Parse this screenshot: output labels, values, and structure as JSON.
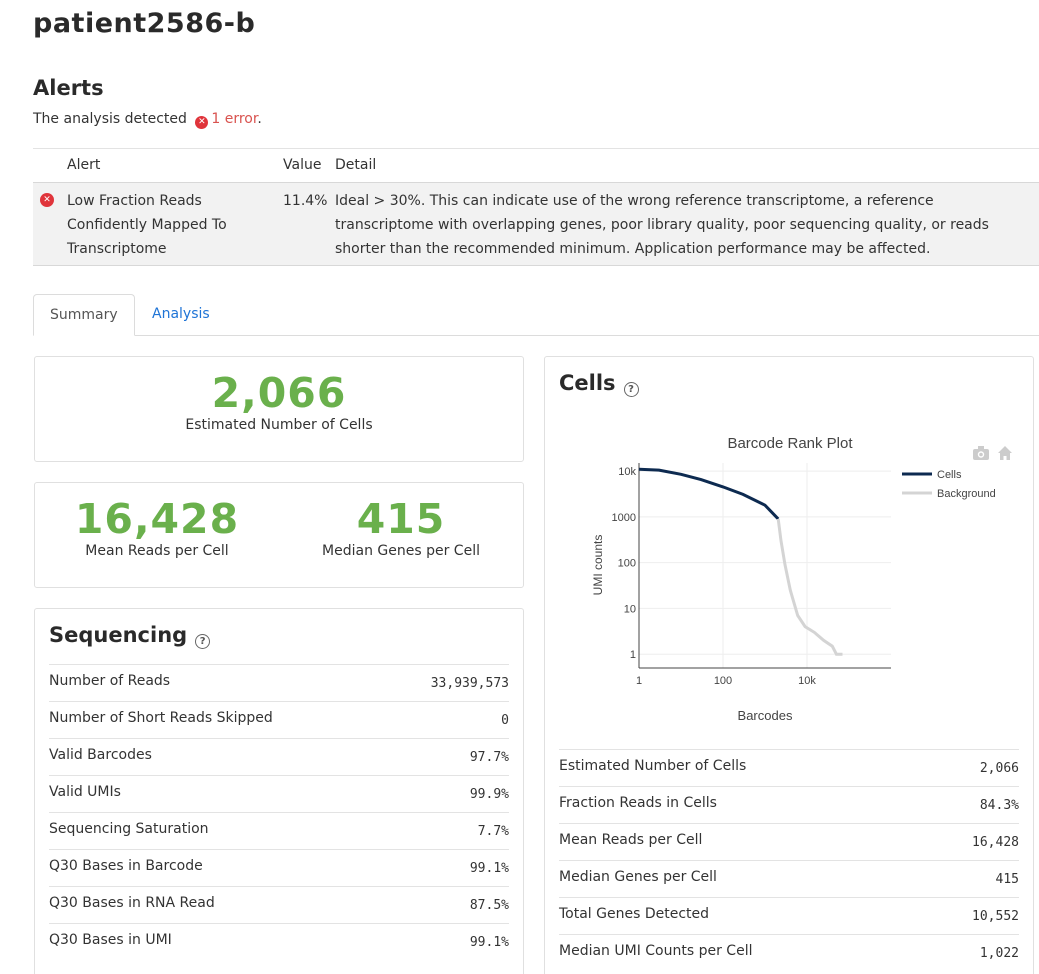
{
  "page": {
    "title": "patient2586-b"
  },
  "alerts": {
    "heading": "Alerts",
    "summary_prefix": "The analysis detected",
    "error_count_label": "1 error",
    "summary_suffix": ".",
    "columns": {
      "alert": "Alert",
      "value": "Value",
      "detail": "Detail"
    },
    "rows": [
      {
        "alert": "Low Fraction Reads Confidently Mapped To Transcriptome",
        "value": "11.4%",
        "detail": "Ideal > 30%. This can indicate use of the wrong reference transcriptome, a reference transcriptome with overlapping genes, poor library quality, poor sequencing quality, or reads shorter than the recommended minimum. Application performance may be affected."
      }
    ]
  },
  "tabs": [
    {
      "label": "Summary"
    },
    {
      "label": "Analysis"
    }
  ],
  "hero": {
    "cells": {
      "value": "2,066",
      "label": "Estimated Number of Cells"
    },
    "mean_reads": {
      "value": "16,428",
      "label": "Mean Reads per Cell"
    },
    "median_genes": {
      "value": "415",
      "label": "Median Genes per Cell"
    }
  },
  "sequencing": {
    "title": "Sequencing",
    "help_glyph": "?",
    "rows": [
      {
        "name": "Number of Reads",
        "value": "33,939,573"
      },
      {
        "name": "Number of Short Reads Skipped",
        "value": "0"
      },
      {
        "name": "Valid Barcodes",
        "value": "97.7%"
      },
      {
        "name": "Valid UMIs",
        "value": "99.9%"
      },
      {
        "name": "Sequencing Saturation",
        "value": "7.7%"
      },
      {
        "name": "Q30 Bases in Barcode",
        "value": "99.1%"
      },
      {
        "name": "Q30 Bases in RNA Read",
        "value": "87.5%"
      },
      {
        "name": "Q30 Bases in UMI",
        "value": "99.1%"
      }
    ]
  },
  "cells": {
    "title": "Cells",
    "help_glyph": "?",
    "rows": [
      {
        "name": "Estimated Number of Cells",
        "value": "2,066"
      },
      {
        "name": "Fraction Reads in Cells",
        "value": "84.3%"
      },
      {
        "name": "Mean Reads per Cell",
        "value": "16,428"
      },
      {
        "name": "Median Genes per Cell",
        "value": "415"
      },
      {
        "name": "Total Genes Detected",
        "value": "10,552"
      },
      {
        "name": "Median UMI Counts per Cell",
        "value": "1,022"
      }
    ]
  },
  "chart_data": {
    "type": "line",
    "title": "Barcode Rank Plot",
    "xlabel": "Barcodes",
    "ylabel": "UMI counts",
    "xscale": "log",
    "yscale": "log",
    "xlim": [
      1,
      1000000
    ],
    "ylim": [
      0.5,
      15000
    ],
    "xticks": [
      {
        "v": 1,
        "label": "1"
      },
      {
        "v": 100,
        "label": "100"
      },
      {
        "v": 10000,
        "label": "10k"
      }
    ],
    "yticks": [
      {
        "v": 1,
        "label": "1"
      },
      {
        "v": 10,
        "label": "10"
      },
      {
        "v": 100,
        "label": "100"
      },
      {
        "v": 1000,
        "label": "1000"
      },
      {
        "v": 10000,
        "label": "10k"
      }
    ],
    "grid": true,
    "legend_position": "top-right",
    "series": [
      {
        "name": "Cells",
        "color": "#0d2a50",
        "points": [
          [
            1,
            11000
          ],
          [
            3,
            10500
          ],
          [
            10,
            8500
          ],
          [
            30,
            6500
          ],
          [
            100,
            4500
          ],
          [
            300,
            3100
          ],
          [
            1000,
            1800
          ],
          [
            2066,
            900
          ]
        ]
      },
      {
        "name": "Background",
        "color": "#d4d4d4",
        "points": [
          [
            2066,
            900
          ],
          [
            2400,
            300
          ],
          [
            3000,
            90
          ],
          [
            4000,
            25
          ],
          [
            6000,
            7
          ],
          [
            9000,
            4
          ],
          [
            15000,
            3
          ],
          [
            25000,
            2
          ],
          [
            40000,
            1.5
          ],
          [
            50000,
            1
          ],
          [
            70000,
            1
          ]
        ]
      }
    ]
  },
  "icons": {
    "error": "error-icon",
    "camera": "camera-icon",
    "home": "home-icon"
  },
  "colors": {
    "accent_green": "#6ab04c",
    "link_blue": "#1f74d6",
    "error_red": "#e0343b"
  }
}
